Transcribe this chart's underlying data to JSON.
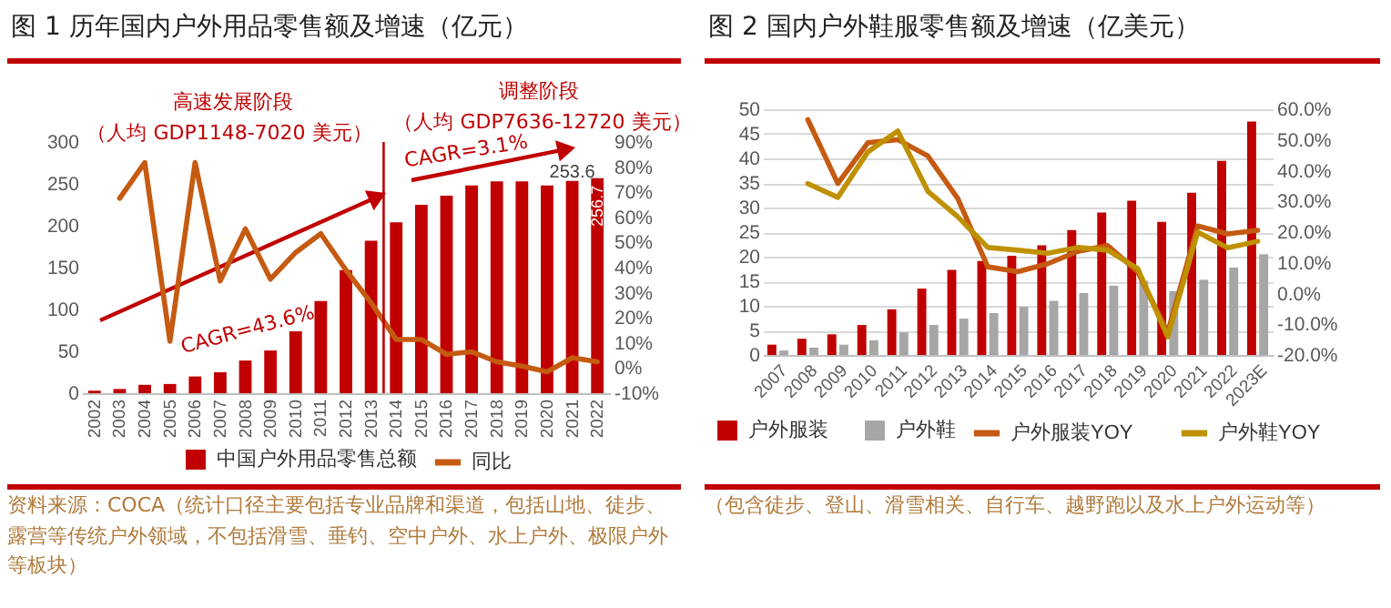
{
  "chart_data": [
    {
      "type": "bar",
      "title": "图 1 历年国内户外用品零售额及增速（亿元）",
      "categories": [
        "2002",
        "2003",
        "2004",
        "2005",
        "2006",
        "2007",
        "2008",
        "2009",
        "2010",
        "2011",
        "2012",
        "2013",
        "2014",
        "2015",
        "2016",
        "2017",
        "2018",
        "2019",
        "2020",
        "2021",
        "2022"
      ],
      "series": [
        {
          "name": "中国户外用品零售总额",
          "color": "#c00000",
          "values": [
            3,
            5,
            10,
            11,
            20,
            25,
            39,
            51,
            74,
            110,
            147,
            182,
            204,
            225,
            236,
            248,
            253,
            253,
            248,
            253.6,
            256.7
          ],
          "value_labels": [
            null,
            null,
            null,
            null,
            null,
            null,
            null,
            null,
            null,
            null,
            null,
            null,
            null,
            null,
            null,
            null,
            null,
            null,
            null,
            "253.6",
            "256.7"
          ]
        },
        {
          "name": "同比",
          "type": "line",
          "axis": "y2",
          "color": "#c55a11",
          "values": [
            null,
            67.6,
            81.8,
            10.7,
            81.8,
            34.7,
            55.4,
            35.4,
            46,
            53.5,
            39,
            26,
            11.4,
            11.4,
            5.5,
            6.5,
            2.5,
            0.8,
            -1.5,
            4.1,
            2.5
          ]
        }
      ],
      "ylim": [
        0,
        300
      ],
      "yticks": [
        0,
        50,
        100,
        150,
        200,
        250,
        300
      ],
      "y2lim": [
        -10,
        90
      ],
      "y2ticks": [
        {
          "value": -10,
          "label": "-10%"
        },
        {
          "value": 0,
          "label": "0%"
        },
        {
          "value": 10,
          "label": "10%"
        },
        {
          "value": 20,
          "label": "20%"
        },
        {
          "value": 30,
          "label": "30%"
        },
        {
          "value": 40,
          "label": "40%"
        },
        {
          "value": 50,
          "label": "50%"
        },
        {
          "value": 60,
          "label": "60%"
        },
        {
          "value": 70,
          "label": "70%"
        },
        {
          "value": 80,
          "label": "80%"
        },
        {
          "value": 90,
          "label": "90%"
        }
      ],
      "legend": "bottom",
      "ref_lines": [
        {
          "axis": "x",
          "value": "2014",
          "color": "#c00000"
        }
      ],
      "annotations": [
        "高速发展阶段",
        "（人均 GDP1148-7020 美元）",
        "调整阶段",
        "（人均 GDP7636-12720 美元）",
        "CAGR=43.6%",
        "CAGR=3.1%",
        "资料来源：COCA（统计口径主要包括专业品牌和渠道，包括山地、徒步、露营等传统户外领域，不包括滑雪、垂钓、空中户外、水上户外、极限户外等板块）"
      ]
    },
    {
      "type": "bar",
      "title": "图 2 国内户外鞋服零售额及增速（亿美元）",
      "categories": [
        "2007",
        "2008",
        "2009",
        "2010",
        "2011",
        "2012",
        "2013",
        "2014",
        "2015",
        "2016",
        "2017",
        "2018",
        "2019",
        "2020",
        "2021",
        "2022",
        "2023E"
      ],
      "series": [
        {
          "name": "户外服装",
          "color": "#c00000",
          "values": [
            2.1,
            3.3,
            4.2,
            6.1,
            9.3,
            13.5,
            17.3,
            19.1,
            20.2,
            22.3,
            25.4,
            29,
            31.4,
            27.1,
            33,
            39.5,
            47.5
          ]
        },
        {
          "name": "户外鞋",
          "color": "#a6a6a6",
          "values": [
            0.9,
            1.5,
            2.1,
            3,
            4.6,
            6.1,
            7.4,
            8.5,
            9.8,
            11,
            12.6,
            14.1,
            15.1,
            13,
            15.3,
            17.8,
            20.5
          ]
        },
        {
          "name": "户外服装YOY",
          "type": "line",
          "axis": "y2",
          "color": "#c55a11",
          "values": [
            null,
            56.6,
            35.8,
            49.1,
            50.1,
            44.8,
            30.9,
            8.7,
            7.1,
            9.7,
            13.7,
            15.6,
            7.1,
            -12.7,
            22,
            19.4,
            20.6
          ]
        },
        {
          "name": "户外鞋YOY",
          "type": "line",
          "axis": "y2",
          "color": "#bf9000",
          "values": [
            null,
            35.8,
            31.3,
            46.1,
            52.9,
            33.3,
            25,
            15,
            14.1,
            13.1,
            15,
            14.1,
            8.1,
            -14.1,
            20,
            14.9,
            17
          ]
        }
      ],
      "ylim": [
        0,
        50
      ],
      "yticks": [
        0,
        5,
        10,
        15,
        20,
        25,
        30,
        35,
        40,
        45,
        50
      ],
      "y2lim": [
        -20,
        60
      ],
      "y2ticks": [
        {
          "value": -20,
          "label": "-20.0%"
        },
        {
          "value": -10,
          "label": "-10.0%"
        },
        {
          "value": 0,
          "label": "0.0%"
        },
        {
          "value": 10,
          "label": "10.0%"
        },
        {
          "value": 20,
          "label": "20.0%"
        },
        {
          "value": 30,
          "label": "30.0%"
        },
        {
          "value": 40,
          "label": "40.0%"
        },
        {
          "value": 50,
          "label": "50.0%"
        },
        {
          "value": 60,
          "label": "60.0%"
        }
      ],
      "grid": "y",
      "legend": "bottom",
      "annotations": [
        "（包含徒步、登山、滑雪相关、自行车、越野跑以及水上户外运动等）"
      ]
    }
  ]
}
